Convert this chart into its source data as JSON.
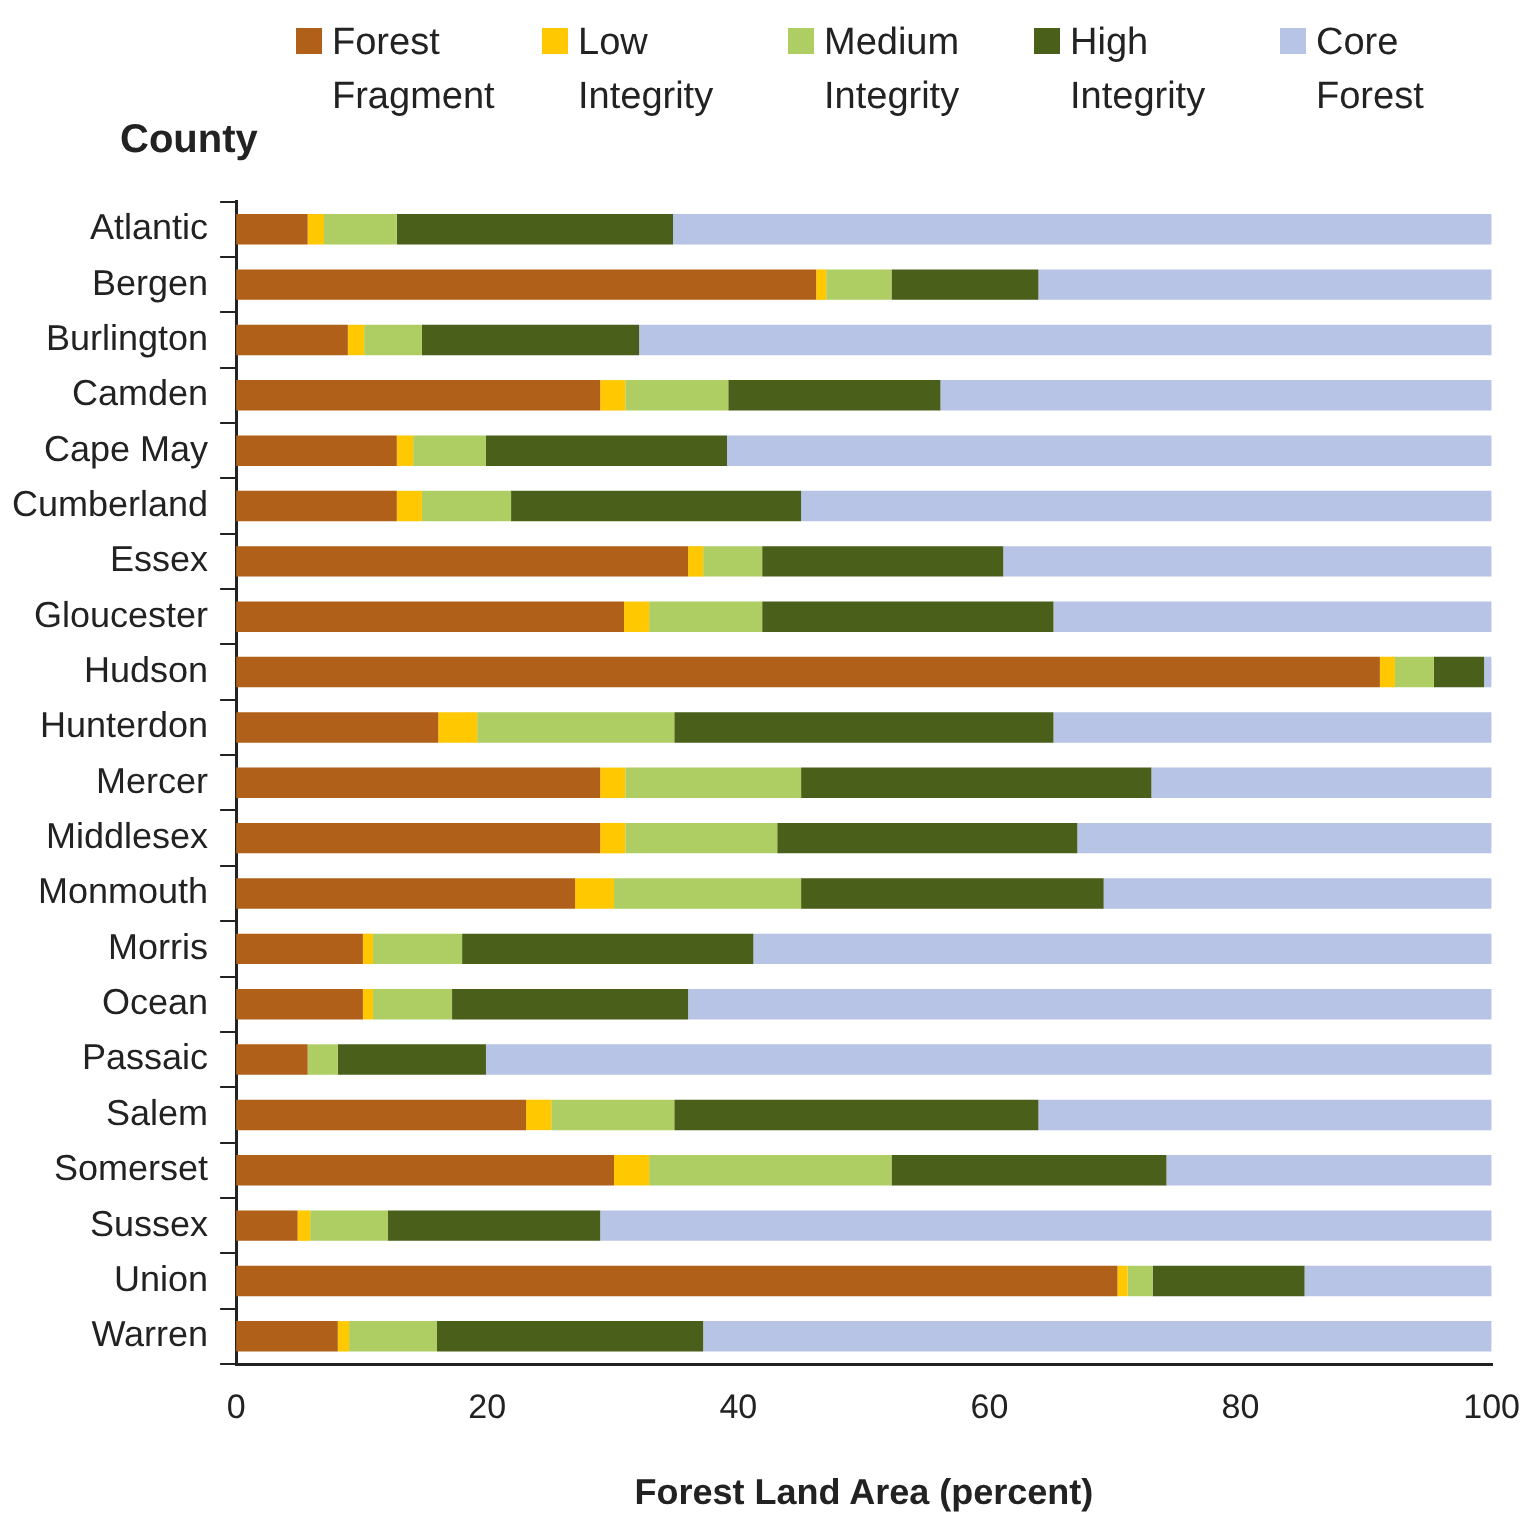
{
  "chart_data": {
    "type": "bar",
    "orientation": "horizontal",
    "stacked": true,
    "xlabel": "Forest Land Area (percent)",
    "ylabel": "County",
    "categories": [
      "Atlantic",
      "Bergen",
      "Burlington",
      "Camden",
      "Cape May",
      "Cumberland",
      "Essex",
      "Gloucester",
      "Hudson",
      "Hunterdon",
      "Mercer",
      "Middlesex",
      "Monmouth",
      "Morris",
      "Ocean",
      "Passaic",
      "Salem",
      "Somerset",
      "Sussex",
      "Union",
      "Warren"
    ],
    "series": [
      {
        "name": "Forest Fragment",
        "color": "#b06019",
        "values": [
          5.7,
          46.2,
          8.9,
          29.0,
          12.8,
          12.8,
          36.0,
          30.9,
          91.1,
          16.1,
          29.0,
          29.0,
          27.0,
          10.1,
          10.1,
          5.7,
          23.1,
          30.1,
          4.9,
          70.2,
          8.1
        ]
      },
      {
        "name": "Low Integrity",
        "color": "#ffc800",
        "values": [
          1.3,
          0.8,
          1.3,
          2.0,
          1.3,
          2.0,
          1.2,
          2.0,
          1.2,
          3.1,
          2.0,
          2.0,
          3.1,
          0.8,
          0.8,
          0,
          2.0,
          2.8,
          1.0,
          0.8,
          0.9
        ]
      },
      {
        "name": "Medium Integrity",
        "color": "#aecd62",
        "values": [
          5.8,
          5.2,
          4.6,
          8.2,
          5.8,
          7.1,
          4.7,
          9.0,
          3.1,
          15.7,
          14.0,
          12.1,
          14.9,
          7.1,
          6.3,
          2.4,
          9.8,
          19.3,
          6.2,
          2.0,
          7.0
        ]
      },
      {
        "name": "High Integrity",
        "color": "#4a5f1a",
        "values": [
          22.0,
          11.7,
          17.3,
          16.9,
          19.2,
          23.1,
          19.2,
          23.2,
          4.0,
          30.2,
          27.9,
          23.9,
          24.1,
          23.2,
          18.8,
          11.8,
          29.0,
          21.9,
          16.9,
          12.1,
          21.2
        ]
      },
      {
        "name": "Core Forest",
        "color": "#b8c4e6",
        "values": [
          65.2,
          36.1,
          67.9,
          43.9,
          60.9,
          55.0,
          38.9,
          34.9,
          0.6,
          34.9,
          27.1,
          33.0,
          30.9,
          58.8,
          64.0,
          80.1,
          36.1,
          25.9,
          71.0,
          14.9,
          62.8
        ]
      }
    ],
    "xlim": [
      0,
      100
    ],
    "xticks": [
      0,
      20,
      40,
      60,
      80,
      100
    ],
    "grid": false,
    "legend": "top"
  }
}
